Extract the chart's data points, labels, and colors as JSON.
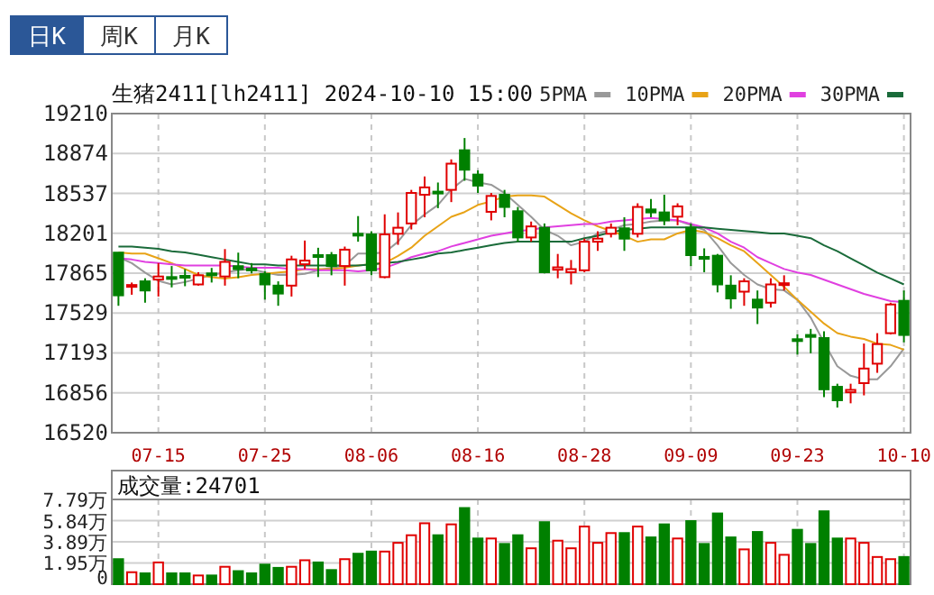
{
  "chart_data": [
    {
      "type": "candlestick",
      "title": "生猪2411[lh2411] 2024-10-10 15:00",
      "annotations": [
        "日K",
        "周K",
        "月K"
      ],
      "categories": [
        null,
        null,
        null,
        "07-15",
        null,
        null,
        null,
        null,
        null,
        null,
        null,
        "07-25",
        null,
        null,
        null,
        null,
        null,
        null,
        null,
        "08-06",
        null,
        null,
        null,
        null,
        null,
        null,
        null,
        "08-16",
        null,
        null,
        null,
        null,
        null,
        null,
        null,
        "08-28",
        null,
        null,
        null,
        null,
        null,
        null,
        null,
        "09-09",
        null,
        null,
        null,
        null,
        null,
        null,
        null,
        "09-23",
        null,
        null,
        null,
        null,
        null,
        null,
        null,
        "10-10"
      ],
      "ohlc": [
        [
          18038,
          18038,
          17590,
          17678
        ],
        [
          17750,
          17786,
          17683,
          17765
        ],
        [
          17796,
          17822,
          17616,
          17719
        ],
        [
          17811,
          17950,
          17668,
          17837
        ],
        [
          17832,
          17925,
          17745,
          17817
        ],
        [
          17842,
          17899,
          17755,
          17832
        ],
        [
          17770,
          17873,
          17760,
          17847
        ],
        [
          17863,
          17909,
          17786,
          17847
        ],
        [
          17837,
          18068,
          17760,
          17960
        ],
        [
          17924,
          18038,
          17822,
          17899
        ],
        [
          17904,
          17950,
          17863,
          17894
        ],
        [
          17858,
          17883,
          17642,
          17770
        ],
        [
          17760,
          17796,
          17590,
          17693
        ],
        [
          17760,
          18012,
          17668,
          17981
        ],
        [
          17940,
          18140,
          17899,
          17971
        ],
        [
          18017,
          18079,
          17832,
          18002
        ],
        [
          18017,
          18043,
          17847,
          17925
        ],
        [
          17925,
          18089,
          17760,
          18063
        ],
        [
          18197,
          18346,
          18130,
          18182
        ],
        [
          18192,
          18218,
          17847,
          17889
        ],
        [
          17832,
          18361,
          17822,
          18192
        ],
        [
          18197,
          18377,
          18104,
          18248
        ],
        [
          18284,
          18567,
          18233,
          18541
        ],
        [
          18526,
          18680,
          18336,
          18588
        ],
        [
          18552,
          18629,
          18413,
          18541
        ],
        [
          18567,
          18824,
          18464,
          18788
        ],
        [
          18901,
          19004,
          18644,
          18737
        ],
        [
          18696,
          18732,
          18541,
          18603
        ],
        [
          18382,
          18541,
          18310,
          18516
        ],
        [
          18526,
          18567,
          18336,
          18423
        ],
        [
          18387,
          18423,
          18130,
          18166
        ],
        [
          18166,
          18300,
          18130,
          18259
        ],
        [
          18248,
          18284,
          17863,
          17873
        ],
        [
          17894,
          18027,
          17822,
          17914
        ],
        [
          17873,
          17976,
          17770,
          17899
        ],
        [
          17889,
          18156,
          17873,
          18130
        ],
        [
          18130,
          18218,
          18053,
          18156
        ],
        [
          18197,
          18284,
          18166,
          18248
        ],
        [
          18243,
          18336,
          18053,
          18156
        ],
        [
          18197,
          18454,
          18166,
          18423
        ],
        [
          18402,
          18490,
          18336,
          18377
        ],
        [
          18377,
          18526,
          18269,
          18310
        ],
        [
          18341,
          18454,
          18269,
          18428
        ],
        [
          18248,
          18284,
          17925,
          18017
        ],
        [
          18002,
          18074,
          17873,
          17986
        ],
        [
          18012,
          18027,
          17703,
          17770
        ],
        [
          17760,
          17847,
          17565,
          17652
        ],
        [
          17709,
          17822,
          17590,
          17796
        ],
        [
          17642,
          17719,
          17436,
          17575
        ],
        [
          17616,
          17822,
          17575,
          17770
        ],
        [
          17765,
          17847,
          17719,
          17780
        ],
        [
          17308,
          17349,
          17179,
          17298
        ],
        [
          17344,
          17395,
          17190,
          17328
        ],
        [
          17318,
          17375,
          16820,
          16886
        ],
        [
          16907,
          16933,
          16732,
          16794
        ],
        [
          16861,
          16933,
          16768,
          16881
        ],
        [
          16938,
          17272,
          16835,
          17061
        ],
        [
          17102,
          17359,
          17025,
          17267
        ],
        [
          17359,
          17616,
          17349,
          17601
        ],
        [
          17632,
          17719,
          17282,
          17344
        ]
      ],
      "colors": [
        "#008000",
        "#e00000",
        "#008000",
        "#e00000",
        "#008000",
        "#008000",
        "#e00000",
        "#008000",
        "#e00000",
        "#008000",
        "#008000",
        "#008000",
        "#008000",
        "#e00000",
        "#e00000",
        "#008000",
        "#008000",
        "#e00000",
        "#008000",
        "#008000",
        "#e00000",
        "#e00000",
        "#e00000",
        "#e00000",
        "#008000",
        "#e00000",
        "#008000",
        "#008000",
        "#e00000",
        "#008000",
        "#008000",
        "#e00000",
        "#008000",
        "#e00000",
        "#e00000",
        "#e00000",
        "#e00000",
        "#e00000",
        "#008000",
        "#e00000",
        "#008000",
        "#008000",
        "#e00000",
        "#008000",
        "#008000",
        "#008000",
        "#008000",
        "#e00000",
        "#008000",
        "#e00000",
        "#e00000",
        "#008000",
        "#008000",
        "#008000",
        "#008000",
        "#e00000",
        "#e00000",
        "#e00000",
        "#e00000",
        "#008000"
      ],
      "series": [
        {
          "name": "5PMA",
          "type": "line",
          "color": "#999999",
          "values": [
            18000,
            17950,
            17870,
            17800,
            17770,
            17790,
            17820,
            17850,
            17870,
            17890,
            17900,
            17870,
            17850,
            17850,
            17860,
            17890,
            17910,
            17930,
            18030,
            18030,
            18040,
            18130,
            18270,
            18360,
            18440,
            18570,
            18660,
            18630,
            18610,
            18540,
            18440,
            18340,
            18230,
            18180,
            18100,
            18130,
            18200,
            18230,
            18270,
            18280,
            18300,
            18310,
            18310,
            18270,
            18230,
            18100,
            17950,
            17850,
            17770,
            17730,
            17720,
            17640,
            17490,
            17280,
            17080,
            17000,
            16970,
            16970,
            17080,
            17230
          ]
        },
        {
          "name": "10PMA",
          "type": "line",
          "color": "#e8a317",
          "values": [
            18040,
            18030,
            18030,
            17990,
            17950,
            17900,
            17850,
            17830,
            17820,
            17830,
            17850,
            17860,
            17870,
            17880,
            17900,
            17900,
            17900,
            17910,
            17930,
            null,
            17950,
            18010,
            18080,
            18180,
            18260,
            18340,
            18380,
            18440,
            18470,
            18510,
            18520,
            18520,
            18510,
            18440,
            18370,
            18310,
            18260,
            18220,
            18180,
            18130,
            18150,
            18150,
            18200,
            18230,
            18210,
            18160,
            18100,
            18050,
            17950,
            17850,
            17750,
            17640,
            17540,
            17440,
            17360,
            17330,
            17310,
            17270,
            17260,
            17220
          ]
        },
        {
          "name": "20PMA",
          "type": "line",
          "color": "#e040e0",
          "values": [
            17990,
            17980,
            17960,
            17950,
            17940,
            17930,
            17930,
            17930,
            17930,
            17920,
            17910,
            17910,
            17910,
            17900,
            17900,
            17890,
            17890,
            17890,
            17880,
            17890,
            17910,
            17950,
            18000,
            18030,
            18050,
            18090,
            18120,
            18150,
            18180,
            18200,
            18220,
            18230,
            18250,
            18260,
            18270,
            18280,
            18280,
            18300,
            18310,
            18320,
            18330,
            18320,
            18310,
            18280,
            18250,
            18200,
            18130,
            18080,
            18000,
            17950,
            17900,
            17870,
            17850,
            17810,
            17770,
            17730,
            17690,
            17660,
            17630,
            17620
          ]
        },
        {
          "name": "30PMA",
          "type": "line",
          "color": "#1a6b3a",
          "values": [
            18090,
            18090,
            18080,
            18070,
            18050,
            18040,
            18020,
            18000,
            17980,
            17960,
            17940,
            17940,
            17930,
            17930,
            17930,
            17930,
            17930,
            17930,
            17930,
            17940,
            17950,
            17960,
            17980,
            18000,
            18030,
            18040,
            18060,
            18080,
            18100,
            18120,
            18130,
            18130,
            18130,
            18130,
            18130,
            18160,
            18180,
            18210,
            18230,
            18240,
            18250,
            18250,
            18250,
            18250,
            18250,
            18240,
            18230,
            18220,
            18210,
            18200,
            18200,
            18180,
            18160,
            18100,
            18050,
            17990,
            17930,
            17870,
            17820,
            17770
          ]
        }
      ],
      "ylim": [
        16520,
        19210
      ],
      "yticks": [
        16520,
        16856,
        17193,
        17529,
        17865,
        18201,
        18537,
        18874,
        19210
      ],
      "grid": true,
      "legend": "top right"
    },
    {
      "type": "bar",
      "title": "成交量:24701",
      "categories": [
        null,
        null,
        null,
        null,
        null,
        null,
        null,
        null,
        null,
        null,
        null,
        null,
        null,
        null,
        null,
        null,
        null,
        null,
        null,
        null,
        null,
        null,
        null,
        null,
        null,
        null,
        null,
        null,
        null,
        null,
        null,
        null,
        null,
        null,
        null,
        null,
        null,
        null,
        null,
        null,
        null,
        null,
        null,
        null,
        null,
        null,
        null,
        null,
        null,
        null,
        null,
        null,
        null,
        null,
        null,
        null,
        null,
        null,
        null,
        null
      ],
      "values": [
        2.3,
        1.1,
        1.0,
        2.0,
        1.0,
        1.0,
        0.8,
        0.8,
        1.6,
        1.2,
        1.0,
        1.8,
        1.5,
        1.6,
        2.2,
        2.0,
        1.3,
        2.3,
        2.8,
        3.0,
        3.0,
        3.8,
        4.5,
        5.6,
        4.5,
        5.5,
        7.0,
        4.2,
        4.2,
        3.7,
        4.5,
        3.3,
        5.7,
        4.0,
        3.3,
        5.3,
        3.8,
        4.7,
        4.7,
        5.3,
        4.3,
        5.5,
        4.2,
        5.8,
        3.7,
        6.5,
        4.3,
        3.2,
        4.8,
        3.8,
        2.7,
        5.0,
        3.7,
        6.7,
        4.2,
        4.2,
        3.8,
        2.5,
        2.3,
        2.5
      ],
      "colors": [
        "#008000",
        "#e00000",
        "#008000",
        "#e00000",
        "#008000",
        "#008000",
        "#e00000",
        "#008000",
        "#e00000",
        "#008000",
        "#008000",
        "#008000",
        "#008000",
        "#e00000",
        "#e00000",
        "#008000",
        "#008000",
        "#e00000",
        "#008000",
        "#008000",
        "#e00000",
        "#e00000",
        "#e00000",
        "#e00000",
        "#008000",
        "#e00000",
        "#008000",
        "#008000",
        "#e00000",
        "#008000",
        "#008000",
        "#e00000",
        "#008000",
        "#e00000",
        "#e00000",
        "#e00000",
        "#e00000",
        "#e00000",
        "#008000",
        "#e00000",
        "#008000",
        "#008000",
        "#e00000",
        "#008000",
        "#008000",
        "#008000",
        "#008000",
        "#e00000",
        "#008000",
        "#e00000",
        "#e00000",
        "#008000",
        "#008000",
        "#008000",
        "#008000",
        "#e00000",
        "#e00000",
        "#e00000",
        "#e00000",
        "#008000"
      ],
      "ylim": [
        0,
        7.79
      ],
      "yticks": [
        0,
        {
          "value": 1.95,
          "label": "1.95万"
        },
        {
          "value": 3.89,
          "label": "3.89万"
        },
        {
          "value": 5.84,
          "label": "5.84万"
        },
        {
          "value": 7.79,
          "label": "7.79万"
        }
      ],
      "grid": true,
      "tick_labels": "y"
    }
  ]
}
